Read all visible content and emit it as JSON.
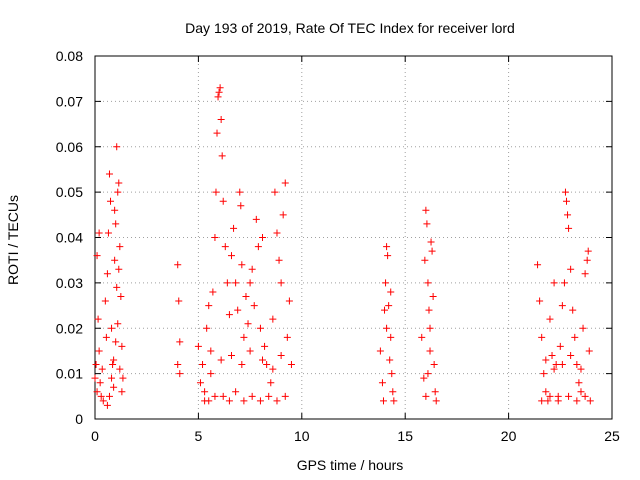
{
  "chart_data": {
    "type": "scatter",
    "title": "Day 193 of 2019, Rate Of TEC Index for receiver lord",
    "xlabel": "GPS time / hours",
    "ylabel": "ROTI / TECUs",
    "xlim": [
      0,
      25
    ],
    "ylim": [
      0,
      0.08
    ],
    "x_ticks": [
      0,
      5,
      10,
      15,
      20,
      25
    ],
    "y_ticks": [
      0,
      0.01,
      0.02,
      0.03,
      0.04,
      0.05,
      0.06,
      0.07,
      0.08
    ],
    "x_tick_labels": [
      "0",
      "5",
      "10",
      "15",
      "20",
      "25"
    ],
    "y_tick_labels": [
      "0",
      "0.01",
      "0.02",
      "0.03",
      "0.04",
      "0.05",
      "0.06",
      "0.07",
      "0.08"
    ],
    "grid": true,
    "marker": "+",
    "color": "#ff0000",
    "series": [
      {
        "values": [
          [
            0.0,
            0.009
          ],
          [
            0.05,
            0.012
          ],
          [
            0.1,
            0.006
          ],
          [
            0.1,
            0.036
          ],
          [
            0.15,
            0.022
          ],
          [
            0.2,
            0.015
          ],
          [
            0.2,
            0.041
          ],
          [
            0.25,
            0.008
          ],
          [
            0.3,
            0.005
          ],
          [
            0.35,
            0.011
          ],
          [
            0.4,
            0.004
          ],
          [
            0.5,
            0.026
          ],
          [
            0.55,
            0.018
          ],
          [
            0.6,
            0.032
          ],
          [
            0.65,
            0.041
          ],
          [
            0.7,
            0.054
          ],
          [
            0.75,
            0.048
          ],
          [
            0.8,
            0.02
          ],
          [
            0.85,
            0.012
          ],
          [
            0.9,
            0.007
          ],
          [
            0.95,
            0.035
          ],
          [
            1.0,
            0.043
          ],
          [
            1.05,
            0.06
          ],
          [
            1.1,
            0.05
          ],
          [
            1.15,
            0.052
          ],
          [
            1.2,
            0.038
          ],
          [
            1.25,
            0.027
          ],
          [
            1.3,
            0.016
          ],
          [
            1.35,
            0.009
          ],
          [
            0.7,
            0.005
          ],
          [
            0.8,
            0.009
          ],
          [
            0.9,
            0.013
          ],
          [
            1.0,
            0.017
          ],
          [
            1.1,
            0.021
          ],
          [
            1.2,
            0.011
          ],
          [
            1.3,
            0.006
          ],
          [
            0.6,
            0.003
          ],
          [
            1.05,
            0.029
          ],
          [
            0.95,
            0.046
          ],
          [
            1.15,
            0.033
          ],
          [
            4.0,
            0.034
          ],
          [
            4.05,
            0.026
          ],
          [
            4.1,
            0.017
          ],
          [
            4.0,
            0.012
          ],
          [
            4.1,
            0.01
          ],
          [
            5.0,
            0.016
          ],
          [
            5.1,
            0.008
          ],
          [
            5.2,
            0.012
          ],
          [
            5.3,
            0.006
          ],
          [
            5.4,
            0.02
          ],
          [
            5.5,
            0.025
          ],
          [
            5.6,
            0.01
          ],
          [
            5.7,
            0.028
          ],
          [
            5.8,
            0.04
          ],
          [
            5.85,
            0.05
          ],
          [
            5.9,
            0.063
          ],
          [
            5.95,
            0.071
          ],
          [
            6.0,
            0.072
          ],
          [
            6.05,
            0.073
          ],
          [
            6.1,
            0.066
          ],
          [
            6.15,
            0.058
          ],
          [
            6.2,
            0.048
          ],
          [
            6.3,
            0.038
          ],
          [
            6.4,
            0.03
          ],
          [
            6.5,
            0.023
          ],
          [
            6.6,
            0.036
          ],
          [
            6.7,
            0.042
          ],
          [
            6.8,
            0.03
          ],
          [
            6.9,
            0.024
          ],
          [
            7.0,
            0.05
          ],
          [
            7.05,
            0.047
          ],
          [
            7.1,
            0.034
          ],
          [
            7.2,
            0.018
          ],
          [
            7.3,
            0.027
          ],
          [
            7.4,
            0.021
          ],
          [
            7.5,
            0.03
          ],
          [
            7.6,
            0.033
          ],
          [
            7.7,
            0.025
          ],
          [
            7.8,
            0.044
          ],
          [
            7.9,
            0.038
          ],
          [
            8.0,
            0.02
          ],
          [
            8.1,
            0.04
          ],
          [
            8.2,
            0.016
          ],
          [
            8.3,
            0.012
          ],
          [
            8.5,
            0.008
          ],
          [
            8.6,
            0.022
          ],
          [
            8.7,
            0.05
          ],
          [
            8.8,
            0.041
          ],
          [
            8.9,
            0.035
          ],
          [
            9.0,
            0.03
          ],
          [
            9.1,
            0.045
          ],
          [
            9.2,
            0.052
          ],
          [
            9.3,
            0.018
          ],
          [
            9.4,
            0.026
          ],
          [
            9.5,
            0.012
          ],
          [
            5.3,
            0.004
          ],
          [
            5.5,
            0.004
          ],
          [
            5.8,
            0.005
          ],
          [
            6.2,
            0.005
          ],
          [
            6.5,
            0.004
          ],
          [
            6.8,
            0.006
          ],
          [
            7.2,
            0.004
          ],
          [
            7.6,
            0.005
          ],
          [
            8.0,
            0.004
          ],
          [
            8.4,
            0.005
          ],
          [
            8.8,
            0.004
          ],
          [
            9.2,
            0.005
          ],
          [
            5.6,
            0.015
          ],
          [
            6.1,
            0.013
          ],
          [
            6.6,
            0.014
          ],
          [
            7.1,
            0.012
          ],
          [
            7.5,
            0.015
          ],
          [
            8.1,
            0.013
          ],
          [
            8.6,
            0.011
          ],
          [
            9.0,
            0.014
          ],
          [
            13.8,
            0.015
          ],
          [
            13.9,
            0.008
          ],
          [
            14.0,
            0.024
          ],
          [
            14.05,
            0.03
          ],
          [
            14.1,
            0.038
          ],
          [
            14.15,
            0.036
          ],
          [
            14.2,
            0.025
          ],
          [
            14.3,
            0.018
          ],
          [
            14.35,
            0.01
          ],
          [
            14.4,
            0.006
          ],
          [
            14.45,
            0.004
          ],
          [
            13.95,
            0.004
          ],
          [
            14.25,
            0.013
          ],
          [
            14.1,
            0.02
          ],
          [
            14.3,
            0.028
          ],
          [
            15.8,
            0.018
          ],
          [
            15.9,
            0.009
          ],
          [
            15.95,
            0.035
          ],
          [
            16.0,
            0.046
          ],
          [
            16.05,
            0.043
          ],
          [
            16.1,
            0.03
          ],
          [
            16.15,
            0.024
          ],
          [
            16.2,
            0.015
          ],
          [
            16.25,
            0.039
          ],
          [
            16.3,
            0.037
          ],
          [
            16.35,
            0.027
          ],
          [
            16.4,
            0.012
          ],
          [
            16.45,
            0.006
          ],
          [
            16.5,
            0.004
          ],
          [
            16.0,
            0.005
          ],
          [
            16.2,
            0.02
          ],
          [
            16.1,
            0.01
          ],
          [
            21.4,
            0.034
          ],
          [
            21.5,
            0.026
          ],
          [
            21.6,
            0.018
          ],
          [
            21.7,
            0.01
          ],
          [
            21.8,
            0.006
          ],
          [
            21.9,
            0.004
          ],
          [
            22.0,
            0.022
          ],
          [
            22.1,
            0.014
          ],
          [
            22.2,
            0.03
          ],
          [
            22.3,
            0.012
          ],
          [
            22.4,
            0.005
          ],
          [
            22.5,
            0.016
          ],
          [
            22.6,
            0.025
          ],
          [
            22.7,
            0.03
          ],
          [
            22.75,
            0.05
          ],
          [
            22.8,
            0.048
          ],
          [
            22.85,
            0.045
          ],
          [
            22.9,
            0.042
          ],
          [
            23.0,
            0.033
          ],
          [
            23.1,
            0.024
          ],
          [
            23.2,
            0.018
          ],
          [
            23.3,
            0.012
          ],
          [
            23.4,
            0.008
          ],
          [
            23.5,
            0.006
          ],
          [
            23.6,
            0.02
          ],
          [
            23.7,
            0.032
          ],
          [
            23.8,
            0.035
          ],
          [
            23.85,
            0.037
          ],
          [
            23.9,
            0.015
          ],
          [
            23.95,
            0.004
          ],
          [
            21.6,
            0.004
          ],
          [
            22.0,
            0.005
          ],
          [
            22.4,
            0.004
          ],
          [
            22.9,
            0.005
          ],
          [
            23.3,
            0.004
          ],
          [
            23.7,
            0.005
          ],
          [
            21.8,
            0.013
          ],
          [
            22.2,
            0.011
          ],
          [
            22.6,
            0.012
          ],
          [
            23.0,
            0.014
          ],
          [
            23.5,
            0.011
          ]
        ]
      }
    ]
  }
}
